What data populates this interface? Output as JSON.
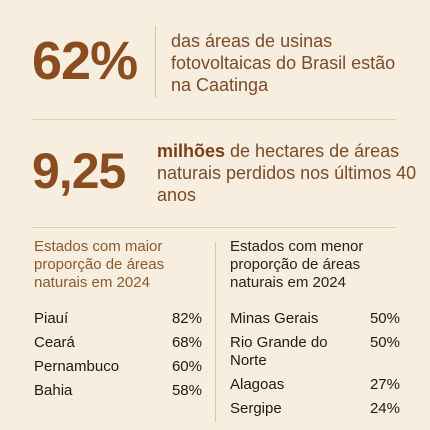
{
  "stat1": {
    "value": "62%",
    "text": "das áreas de usinas fotovoltaicas do Brasil estão na Caatinga"
  },
  "stat2": {
    "value": "9,25",
    "text_strong": "milhões",
    "text_rest": " de hectares de áreas naturais perdidos nos últimos 40 anos"
  },
  "left_table": {
    "title": "Estados com maior proporção de áreas naturais em 2024",
    "rows": [
      {
        "state": "Piauí",
        "pct": "82%"
      },
      {
        "state": "Ceará",
        "pct": "68%"
      },
      {
        "state": "Pernambuco",
        "pct": "60%"
      },
      {
        "state": "Bahia",
        "pct": "58%"
      }
    ]
  },
  "right_table": {
    "title": "Estados com menor proporção de áreas naturais em 2024",
    "rows": [
      {
        "state": "Minas Gerais",
        "pct": "50%"
      },
      {
        "state": "Rio Grande do Norte",
        "pct": "50%"
      },
      {
        "state": "Alagoas",
        "pct": "27%"
      },
      {
        "state": "Sergipe",
        "pct": "24%"
      }
    ]
  },
  "colors": {
    "background": "#f8eedf",
    "accent": "#8a4d1f",
    "text": "#1f1a17",
    "divider": "#d9cbb6"
  }
}
